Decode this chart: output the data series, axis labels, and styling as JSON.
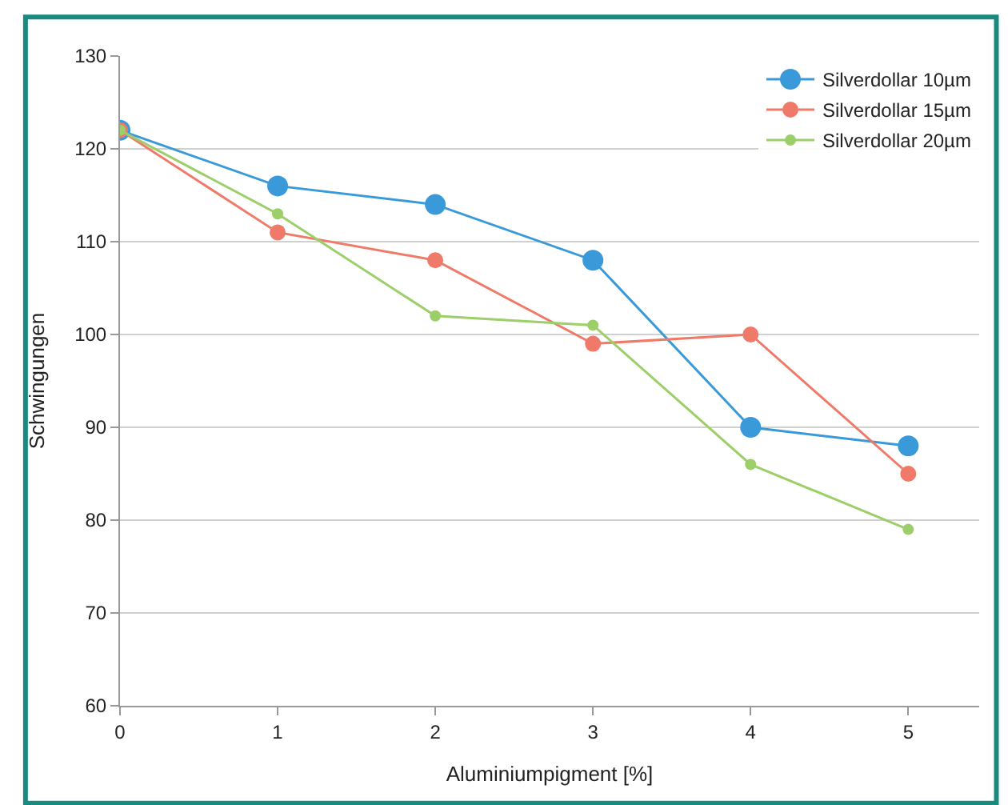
{
  "chart_data": {
    "type": "line",
    "xlabel": "Aluminiumpigment [%]",
    "ylabel": "Schwingungen",
    "x": [
      0,
      1,
      2,
      3,
      4,
      5
    ],
    "series": [
      {
        "name": "Silverdollar 10µm",
        "color": "#3a9ad9",
        "values": [
          122,
          116,
          114,
          108,
          90,
          88
        ]
      },
      {
        "name": "Silverdollar 15µm",
        "color": "#f07a6a",
        "values": [
          122,
          111,
          108,
          99,
          100,
          85
        ]
      },
      {
        "name": "Silverdollar 20µm",
        "color": "#9ccf6a",
        "values": [
          122,
          113,
          102,
          101,
          86,
          79
        ]
      }
    ],
    "xlim": [
      0,
      5.45
    ],
    "xticks": [
      0,
      1,
      2,
      3,
      4,
      5
    ],
    "ylim": [
      60,
      130
    ],
    "yticks": [
      60,
      70,
      80,
      90,
      100,
      110,
      120,
      130
    ],
    "grid": "y",
    "legend": "top right",
    "marker": "circle",
    "line_style": "solid"
  }
}
